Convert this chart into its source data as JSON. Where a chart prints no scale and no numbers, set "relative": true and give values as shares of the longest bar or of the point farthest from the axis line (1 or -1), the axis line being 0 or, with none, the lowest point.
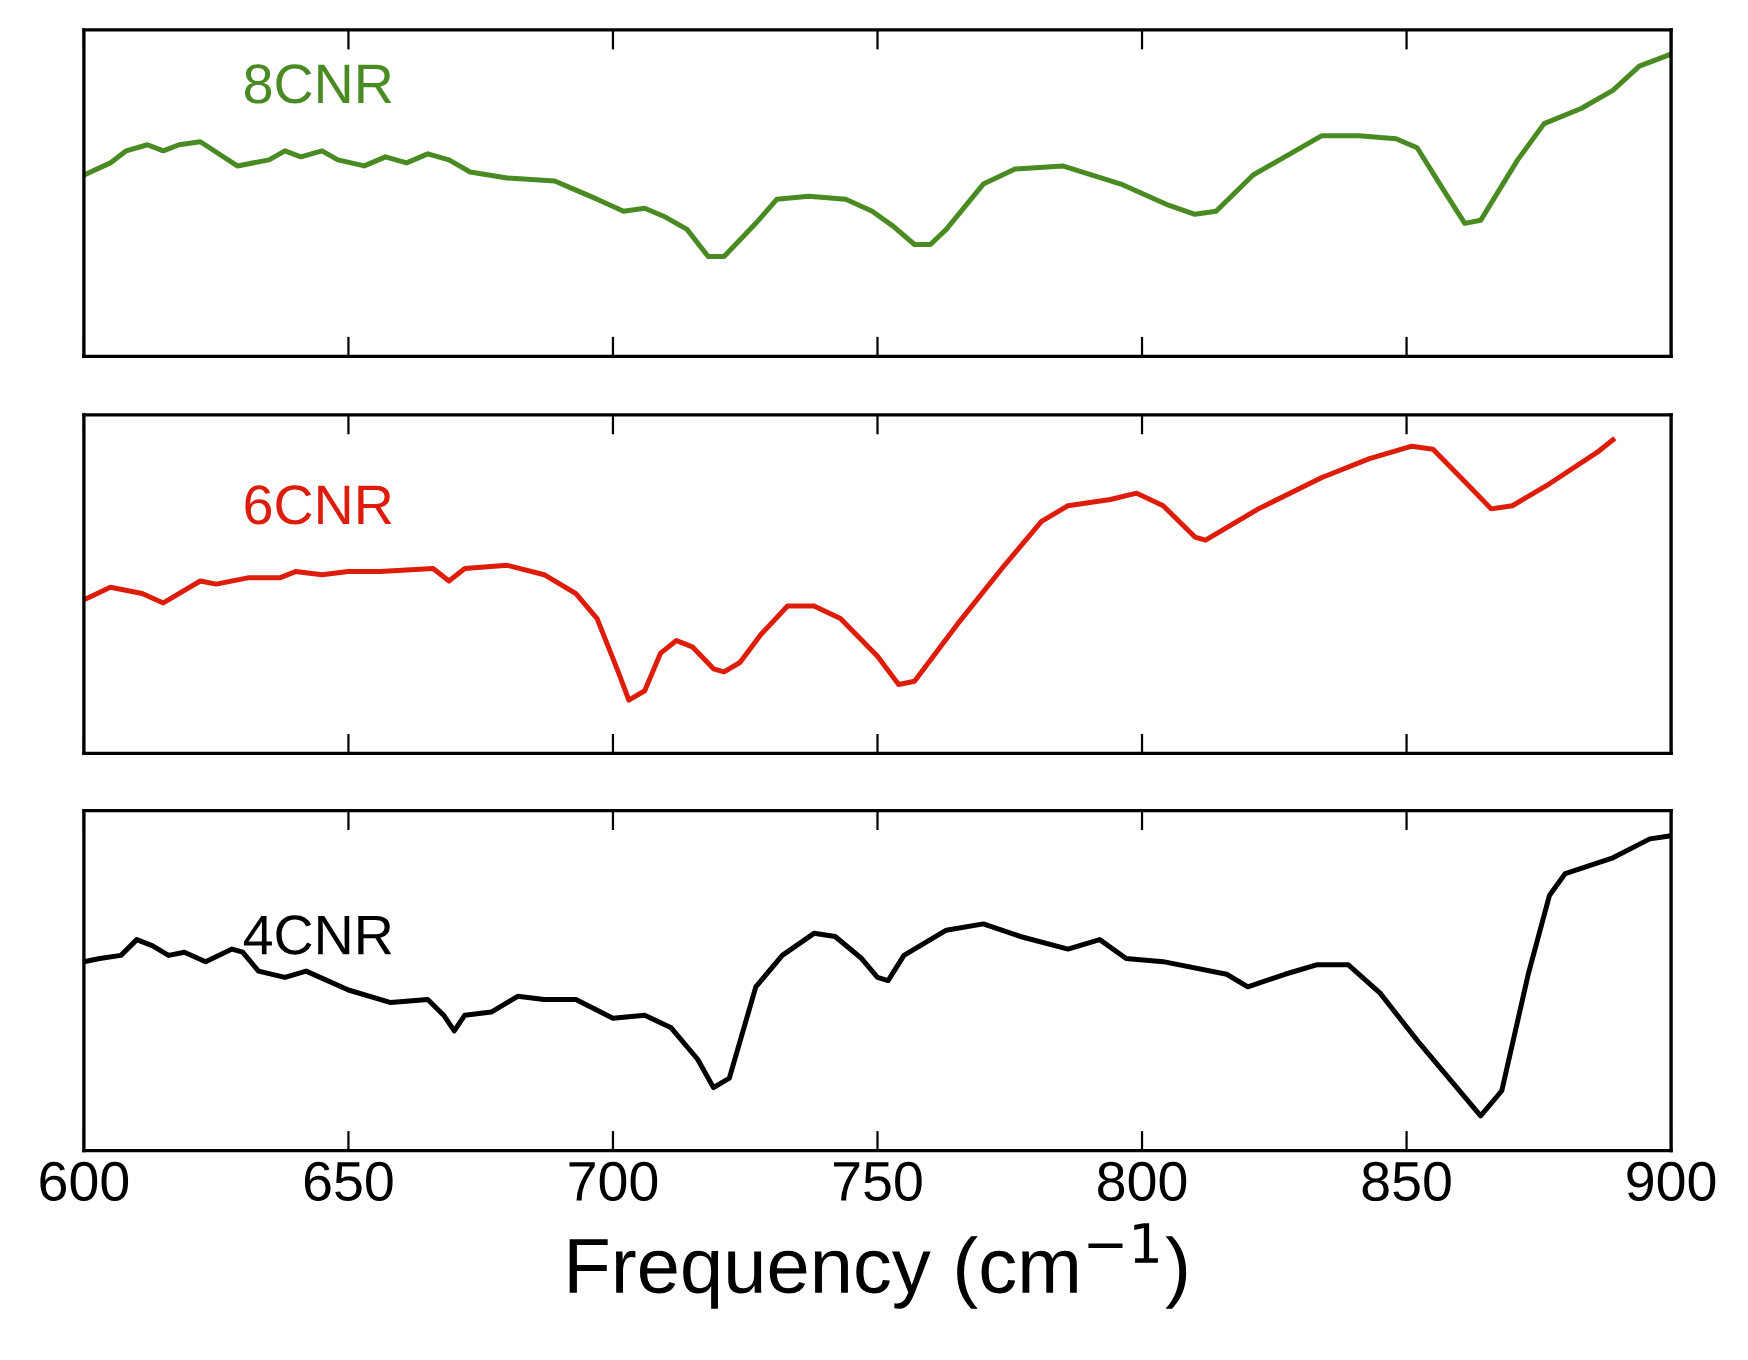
{
  "chart_data": [
    {
      "type": "line",
      "relative": true,
      "xlim": [
        600,
        900
      ],
      "xticks": [
        600,
        650,
        700,
        750,
        800,
        850,
        900
      ],
      "tick_labels": false,
      "x": [
        600,
        605,
        608,
        612,
        615,
        618,
        622,
        629,
        635,
        638,
        641,
        645,
        648,
        653,
        657,
        661,
        665,
        669,
        673,
        680,
        689,
        693,
        697,
        702,
        706,
        710,
        714,
        718,
        721,
        727,
        731,
        737,
        744,
        749,
        753,
        757,
        760,
        763,
        770,
        776,
        785,
        796,
        805,
        810,
        814,
        821,
        834,
        841,
        848,
        852,
        857,
        861,
        864,
        871,
        876,
        883,
        889,
        894,
        900
      ],
      "series": [
        {
          "name": "8CNR",
          "color": "#4a8a22",
          "values": [
            0.6,
            0.64,
            0.68,
            0.7,
            0.68,
            0.7,
            0.71,
            0.63,
            0.65,
            0.68,
            0.66,
            0.68,
            0.65,
            0.63,
            0.66,
            0.64,
            0.67,
            0.65,
            0.61,
            0.59,
            0.58,
            0.55,
            0.52,
            0.48,
            0.49,
            0.46,
            0.42,
            0.33,
            0.33,
            0.44,
            0.52,
            0.53,
            0.52,
            0.48,
            0.43,
            0.37,
            0.37,
            0.42,
            0.57,
            0.62,
            0.63,
            0.57,
            0.5,
            0.47,
            0.48,
            0.6,
            0.73,
            0.73,
            0.72,
            0.69,
            0.55,
            0.44,
            0.45,
            0.65,
            0.77,
            0.82,
            0.88,
            0.96,
            1.0
          ]
        }
      ]
    },
    {
      "type": "line",
      "relative": true,
      "xlim": [
        600,
        900
      ],
      "xticks": [
        600,
        650,
        700,
        750,
        800,
        850,
        900
      ],
      "tick_labels": false,
      "x": [
        600,
        605,
        611,
        615,
        619,
        622,
        625,
        631,
        637,
        640,
        645,
        650,
        656,
        666,
        669,
        672,
        680,
        687,
        693,
        697,
        701,
        703,
        706,
        709,
        712,
        715,
        719,
        721,
        724,
        728,
        733,
        738,
        743,
        750,
        754,
        757,
        765,
        774,
        781,
        786,
        794,
        799,
        804,
        810,
        812,
        822,
        834,
        843,
        851,
        855,
        862,
        866,
        870,
        877,
        886,
        889
      ],
      "series": [
        {
          "name": "6CNR",
          "color": "#dd1c0a",
          "values": [
            0.49,
            0.53,
            0.51,
            0.48,
            0.52,
            0.55,
            0.54,
            0.56,
            0.56,
            0.58,
            0.57,
            0.58,
            0.58,
            0.59,
            0.55,
            0.59,
            0.6,
            0.57,
            0.51,
            0.43,
            0.26,
            0.17,
            0.2,
            0.32,
            0.36,
            0.34,
            0.27,
            0.26,
            0.29,
            0.38,
            0.47,
            0.47,
            0.43,
            0.31,
            0.22,
            0.23,
            0.41,
            0.6,
            0.74,
            0.79,
            0.81,
            0.83,
            0.79,
            0.69,
            0.68,
            0.78,
            0.88,
            0.94,
            0.98,
            0.97,
            0.85,
            0.78,
            0.79,
            0.86,
            0.96,
            1.0
          ]
        }
      ]
    },
    {
      "type": "line",
      "relative": true,
      "xlim": [
        600,
        900
      ],
      "xticks": [
        600,
        650,
        700,
        750,
        800,
        850,
        900
      ],
      "tick_labels": "x",
      "xlabel": "Frequency (cm$^{−1}$)",
      "x": [
        600,
        603,
        607,
        610,
        613,
        616,
        619,
        623,
        628,
        630,
        633,
        638,
        642,
        650,
        658,
        665,
        668,
        670,
        672,
        677,
        682,
        687,
        693,
        700,
        706,
        711,
        716,
        719,
        722,
        727,
        732,
        738,
        742,
        747,
        750,
        752,
        755,
        763,
        770,
        777,
        786,
        792,
        797,
        804,
        816,
        820,
        827,
        833,
        839,
        845,
        852,
        857,
        864,
        868,
        873,
        877,
        880,
        889,
        896,
        900
      ],
      "series": [
        {
          "name": "4CNR",
          "color": "#000000",
          "values": [
            0.6,
            0.61,
            0.62,
            0.67,
            0.65,
            0.62,
            0.63,
            0.6,
            0.64,
            0.63,
            0.57,
            0.55,
            0.57,
            0.51,
            0.47,
            0.48,
            0.43,
            0.38,
            0.43,
            0.44,
            0.49,
            0.48,
            0.48,
            0.42,
            0.43,
            0.39,
            0.29,
            0.2,
            0.23,
            0.52,
            0.62,
            0.69,
            0.68,
            0.61,
            0.55,
            0.54,
            0.62,
            0.7,
            0.72,
            0.68,
            0.64,
            0.67,
            0.61,
            0.6,
            0.56,
            0.52,
            0.56,
            0.59,
            0.59,
            0.5,
            0.35,
            0.25,
            0.11,
            0.19,
            0.56,
            0.81,
            0.88,
            0.93,
            0.99,
            1.0
          ]
        }
      ]
    }
  ]
}
